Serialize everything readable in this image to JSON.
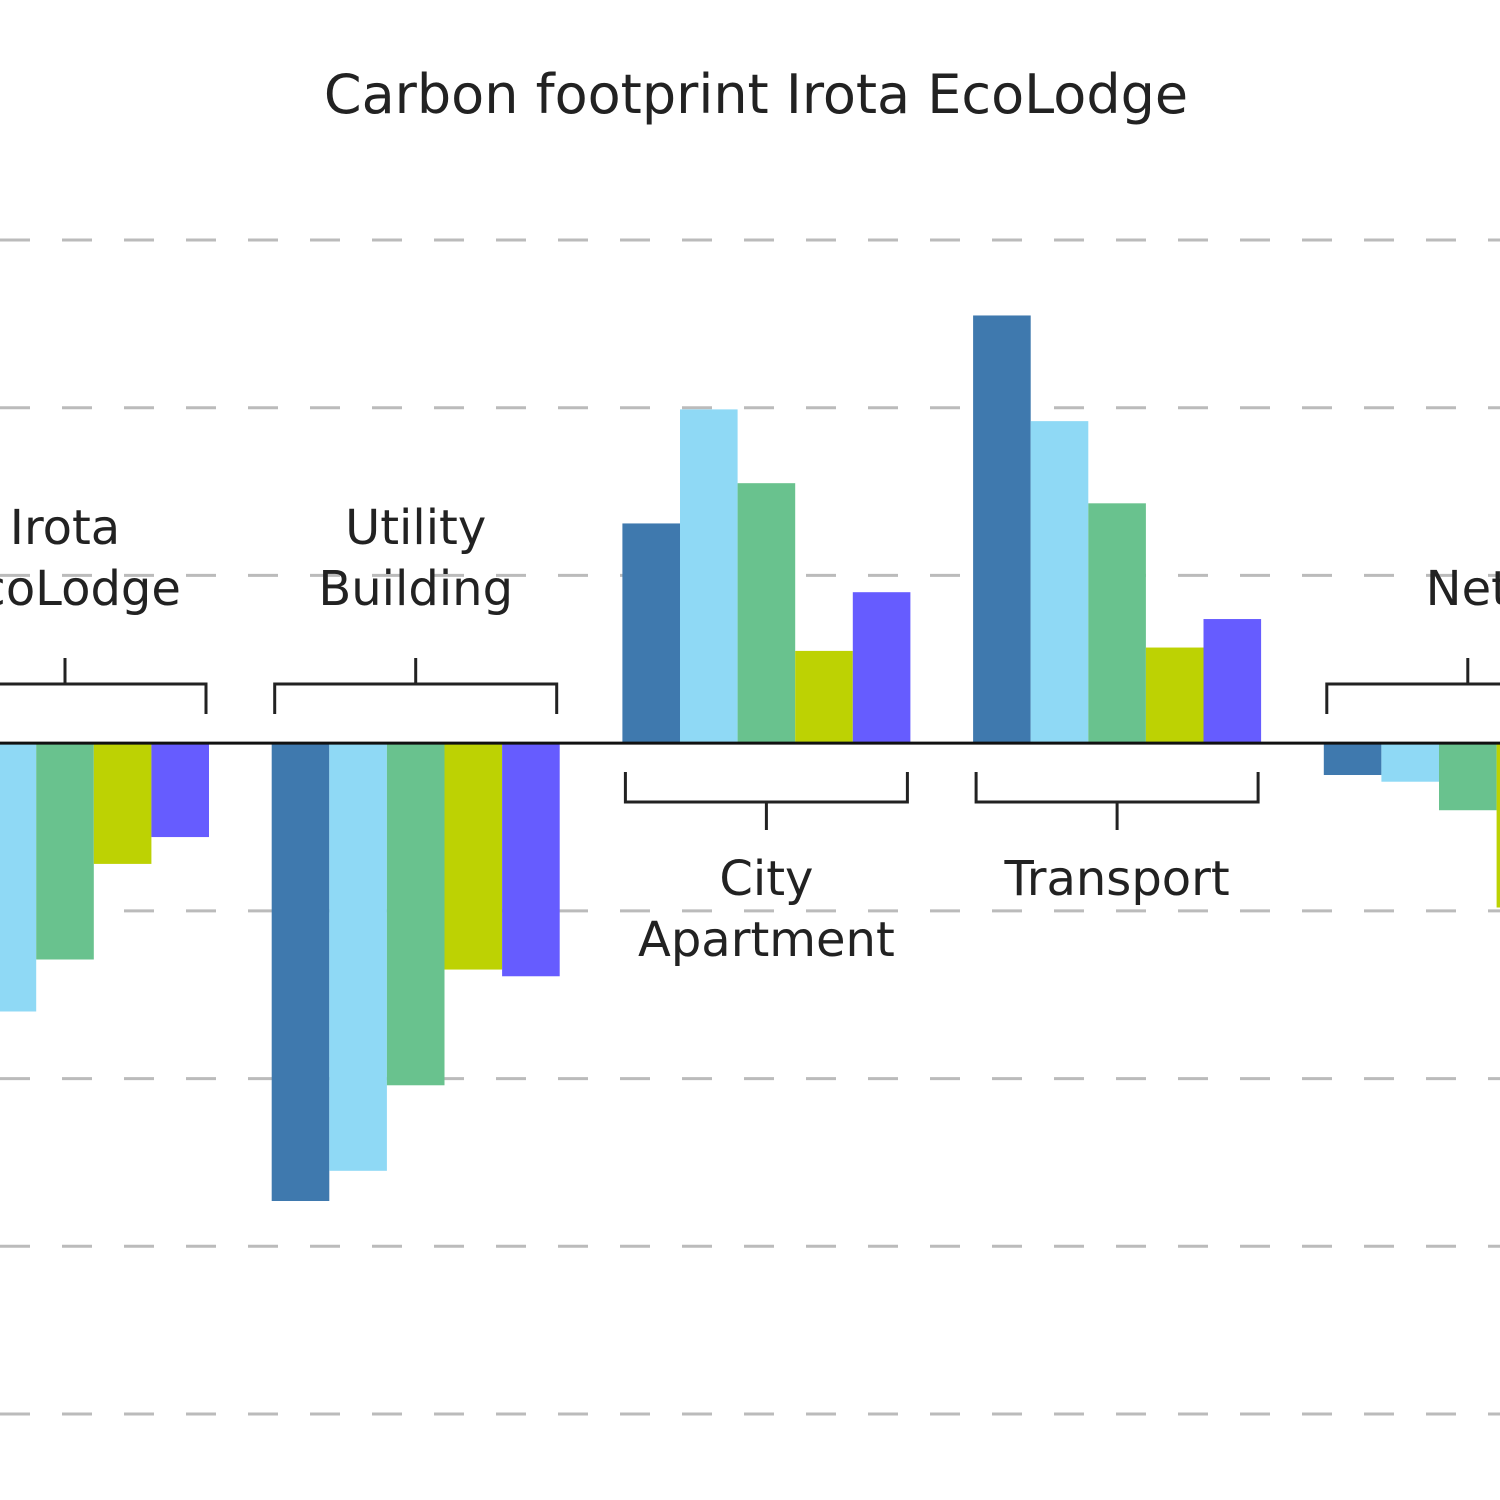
{
  "chart_data": {
    "type": "bar",
    "title": "Carbon footprint Irota EcoLodge",
    "categories": [
      "Irota EcoLodge",
      "Utility Building",
      "City Apartment",
      "Transport",
      "Net"
    ],
    "series": [
      {
        "color": "#3f79ae",
        "values": [
          null,
          -2.73,
          1.31,
          2.55,
          -0.19
        ]
      },
      {
        "color": "#8fd9f5",
        "values": [
          -1.6,
          -2.55,
          1.99,
          1.92,
          -0.23
        ]
      },
      {
        "color": "#69c28e",
        "values": [
          -1.29,
          -2.04,
          1.55,
          1.43,
          -0.4
        ]
      },
      {
        "color": "#bdd203",
        "values": [
          -0.72,
          -1.35,
          0.55,
          0.57,
          -0.98
        ]
      },
      {
        "color": "#665cff",
        "values": [
          -0.56,
          -1.39,
          0.9,
          0.74,
          null
        ]
      }
    ],
    "ylim": [
      -4,
      3
    ],
    "yticks": [
      -4,
      -3,
      -2,
      -1,
      0,
      1,
      2,
      3
    ],
    "grid": true
  }
}
